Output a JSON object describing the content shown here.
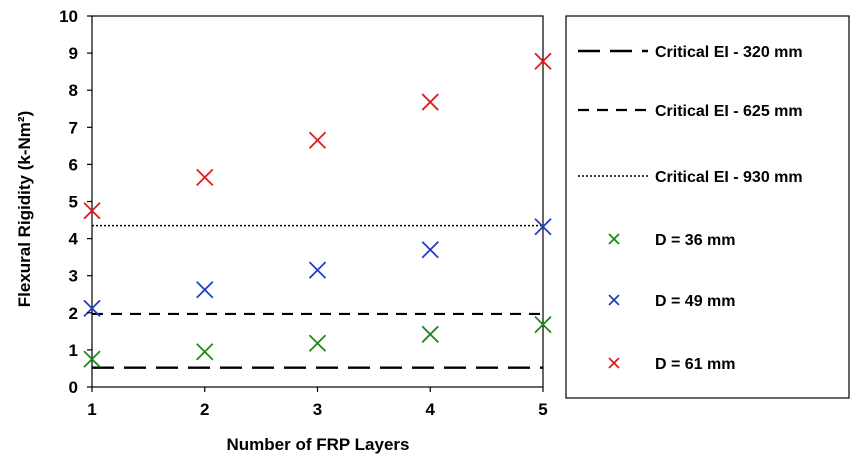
{
  "chart_data": {
    "type": "scatter",
    "xlabel": "Number of FRP Layers",
    "ylabel": "Flexural Rigidity (k-Nm²)",
    "xlim": [
      1,
      5
    ],
    "ylim": [
      0,
      10
    ],
    "x_ticks": [
      "1",
      "2",
      "3",
      "4",
      "5"
    ],
    "y_ticks": [
      "0",
      "1",
      "2",
      "3",
      "4",
      "5",
      "6",
      "7",
      "8",
      "9",
      "10"
    ],
    "grid": false,
    "legend_position": "right",
    "lines": [
      {
        "name": "Critical EI - 320 mm",
        "y": 0.52,
        "style": "long-dash",
        "color": "#000000"
      },
      {
        "name": "Critical EI - 625 mm",
        "y": 1.97,
        "style": "dash",
        "color": "#000000"
      },
      {
        "name": "Critical EI - 930 mm",
        "y": 4.35,
        "style": "dot",
        "color": "#000000"
      }
    ],
    "series": [
      {
        "name": "D = 36 mm",
        "marker": "x",
        "color": "#1a8a1a",
        "x": [
          1,
          2,
          3,
          4,
          5
        ],
        "y": [
          0.75,
          0.95,
          1.18,
          1.42,
          1.68
        ]
      },
      {
        "name": "D = 49 mm",
        "marker": "x",
        "color": "#1f3fbf",
        "x": [
          1,
          2,
          3,
          4,
          5
        ],
        "y": [
          2.12,
          2.62,
          3.15,
          3.7,
          4.32
        ]
      },
      {
        "name": "D = 61 mm",
        "marker": "x",
        "color": "#e01b1b",
        "x": [
          1,
          2,
          3,
          4,
          5
        ],
        "y": [
          4.75,
          5.65,
          6.65,
          7.68,
          8.78
        ]
      }
    ]
  }
}
